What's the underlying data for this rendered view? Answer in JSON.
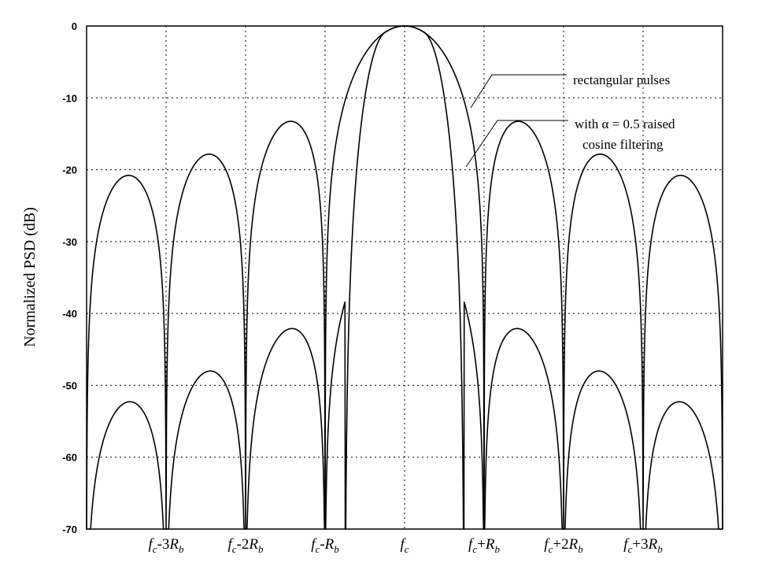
{
  "chart_data": {
    "type": "line",
    "title": "",
    "xlabel": "",
    "ylabel": "Normalized PSD (dB)",
    "ylim": [
      -70,
      0
    ],
    "xlim": [
      -4,
      4
    ],
    "y_ticks": [
      0,
      -10,
      -20,
      -30,
      -40,
      -50,
      -60,
      -70
    ],
    "y_tick_labels": [
      "0",
      "-10",
      "-20",
      "-30",
      "-40",
      "-50",
      "-60",
      "-70"
    ],
    "x_ticks": [
      -3,
      -2,
      -1,
      0,
      1,
      2,
      3
    ],
    "x_tick_labels": [
      {
        "f": "f",
        "sub1": "c",
        "op": "-3",
        "R": "R",
        "sub2": "b"
      },
      {
        "f": "f",
        "sub1": "c",
        "op": "-2",
        "R": "R",
        "sub2": "b"
      },
      {
        "f": "f",
        "sub1": "c",
        "op": "-",
        "R": "R",
        "sub2": "b"
      },
      {
        "f": "f",
        "sub1": "c",
        "op": "",
        "R": "",
        "sub2": ""
      },
      {
        "f": "f",
        "sub1": "c",
        "op": "+",
        "R": "R",
        "sub2": "b"
      },
      {
        "f": "f",
        "sub1": "c",
        "op": "+2",
        "R": "R",
        "sub2": "b"
      },
      {
        "f": "f",
        "sub1": "c",
        "op": "+3",
        "R": "R",
        "sub2": "b"
      }
    ],
    "grid": true,
    "annotations": [
      {
        "text": "rectangular pulses"
      },
      {
        "text": "with α = 0.5 raised"
      },
      {
        "text": "cosine filtering"
      }
    ],
    "series": [
      {
        "style": "solid",
        "floor_db": -70
      },
      {
        "style": "solid",
        "alpha": 0.5,
        "floor_db": -70
      }
    ]
  }
}
